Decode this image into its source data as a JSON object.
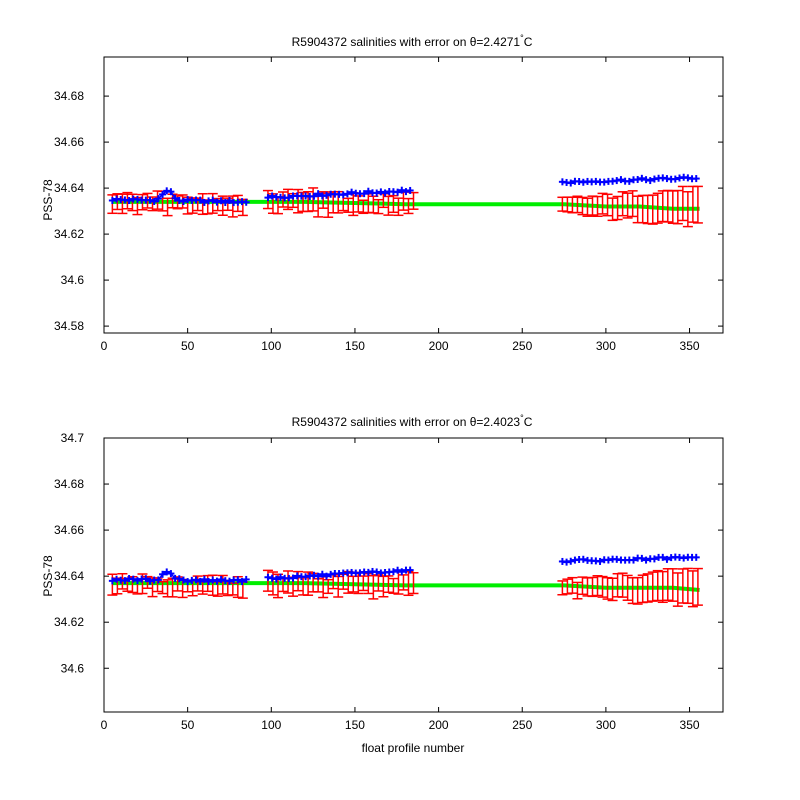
{
  "colors": {
    "float_salinity": "#0000ff",
    "mapped_salinity": "#00ee00",
    "error_bars": "#ff0000",
    "axes": "#000000"
  },
  "chart_data": [
    {
      "type": "scatter",
      "title_prefix": "R5904372 salinities with error on θ=2.4271",
      "title_degree": "°",
      "title_suffix": "C",
      "xlabel": "",
      "ylabel": "PSS-78",
      "xlim": [
        0,
        370
      ],
      "ylim": [
        34.577,
        34.697
      ],
      "xticks": [
        0,
        50,
        100,
        150,
        200,
        250,
        300,
        350
      ],
      "yticks": [
        34.58,
        34.6,
        34.62,
        34.64,
        34.66,
        34.68
      ],
      "ytick_labels": [
        "34.58",
        "34.6",
        "34.62",
        "34.64",
        "34.66",
        "34.68"
      ],
      "grid": false,
      "float_salinity": {
        "segments": [
          {
            "x_start": 5,
            "x_end": 85,
            "y_start": 34.635,
            "y_end": 34.634,
            "peak_x": 38,
            "peak_y": 34.639
          },
          {
            "x_start": 98,
            "x_end": 185,
            "y_start": 34.636,
            "y_end": 34.639
          },
          {
            "x_start": 274,
            "x_end": 356,
            "y_start": 34.6425,
            "y_end": 34.6445
          }
        ]
      },
      "mapped_salinity": {
        "x": [
          5,
          60,
          120,
          180,
          200,
          250,
          275,
          300,
          320,
          340,
          356
        ],
        "y": [
          34.634,
          34.634,
          34.634,
          34.633,
          34.633,
          34.633,
          34.633,
          34.632,
          34.632,
          34.631,
          34.631
        ]
      },
      "error_bars": {
        "segments": [
          {
            "x_start": 5,
            "x_end": 85,
            "y_start": 34.634,
            "y_end": 34.632,
            "err": 0.0035
          },
          {
            "x_start": 98,
            "x_end": 185,
            "y_start": 34.634,
            "y_end": 34.633,
            "err": 0.004
          },
          {
            "x_start": 274,
            "x_end": 356,
            "y_start": 34.632,
            "y_end": 34.632,
            "err_start": 0.003,
            "err_end": 0.008
          }
        ]
      }
    },
    {
      "type": "scatter",
      "title_prefix": "R5904372 salinities with error on θ=2.4023",
      "title_degree": "°",
      "title_suffix": "C",
      "xlabel": "float profile number",
      "ylabel": "PSS-78",
      "xlim": [
        0,
        370
      ],
      "ylim": [
        34.581,
        34.7
      ],
      "xticks": [
        0,
        50,
        100,
        150,
        200,
        250,
        300,
        350
      ],
      "yticks": [
        34.6,
        34.62,
        34.64,
        34.66,
        34.68,
        34.7
      ],
      "ytick_labels": [
        "34.6",
        "34.62",
        "34.64",
        "34.66",
        "34.68",
        "34.7"
      ],
      "grid": false,
      "float_salinity": {
        "segments": [
          {
            "x_start": 5,
            "x_end": 85,
            "y_start": 34.6385,
            "y_end": 34.638,
            "peak_x": 38,
            "peak_y": 34.642
          },
          {
            "x_start": 98,
            "x_end": 185,
            "y_start": 34.639,
            "y_end": 34.6425
          },
          {
            "x_start": 274,
            "x_end": 356,
            "y_start": 34.6465,
            "y_end": 34.648
          }
        ]
      },
      "mapped_salinity": {
        "x": [
          5,
          60,
          120,
          180,
          200,
          250,
          275,
          300,
          320,
          340,
          356
        ],
        "y": [
          34.637,
          34.637,
          34.637,
          34.636,
          34.636,
          34.636,
          34.636,
          34.635,
          34.635,
          34.635,
          34.634
        ]
      },
      "error_bars": {
        "segments": [
          {
            "x_start": 5,
            "x_end": 85,
            "y_start": 34.637,
            "y_end": 34.635,
            "err": 0.0035
          },
          {
            "x_start": 98,
            "x_end": 185,
            "y_start": 34.637,
            "y_end": 34.636,
            "err": 0.004
          },
          {
            "x_start": 274,
            "x_end": 356,
            "y_start": 34.635,
            "y_end": 34.635,
            "err_start": 0.003,
            "err_end": 0.008
          }
        ]
      }
    }
  ]
}
